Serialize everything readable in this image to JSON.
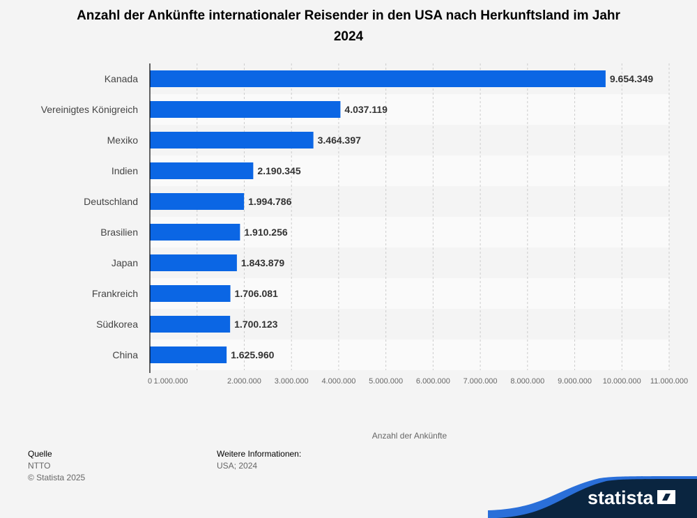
{
  "chart_data": {
    "type": "bar",
    "orientation": "horizontal",
    "title": "Anzahl der Ankünfte internationaler Reisender in den USA nach Herkunftsland im Jahr 2024",
    "categories": [
      "Kanada",
      "Vereinigtes Königreich",
      "Mexiko",
      "Indien",
      "Deutschland",
      "Brasilien",
      "Japan",
      "Frankreich",
      "Südkorea",
      "China"
    ],
    "values": [
      9654349,
      4037119,
      3464397,
      2190345,
      1994786,
      1910256,
      1843879,
      1706081,
      1700123,
      1625960
    ],
    "data_labels": [
      "9.654.349",
      "4.037.119",
      "3.464.397",
      "2.190.345",
      "1.994.786",
      "1.910.256",
      "1.843.879",
      "1.706.081",
      "1.700.123",
      "1.625.960"
    ],
    "xlabel": "Anzahl der Ankünfte",
    "xlim": [
      0,
      11000000
    ],
    "x_ticks": [
      0,
      1000000,
      2000000,
      3000000,
      4000000,
      5000000,
      6000000,
      7000000,
      8000000,
      9000000,
      10000000,
      11000000
    ],
    "x_tick_labels": [
      "0",
      "1.000.000",
      "2.000.000",
      "3.000.000",
      "4.000.000",
      "5.000.000",
      "6.000.000",
      "7.000.000",
      "8.000.000",
      "9.000.000",
      "10.000.000",
      "11.000.000"
    ],
    "grid": true,
    "bar_color": "#0b66e4"
  },
  "footer": {
    "source_heading": "Quelle",
    "source": "NTTO",
    "copyright": "© Statista 2025",
    "info_heading": "Weitere Informationen:",
    "info": "USA; 2024"
  },
  "logo": {
    "text": "statista"
  }
}
